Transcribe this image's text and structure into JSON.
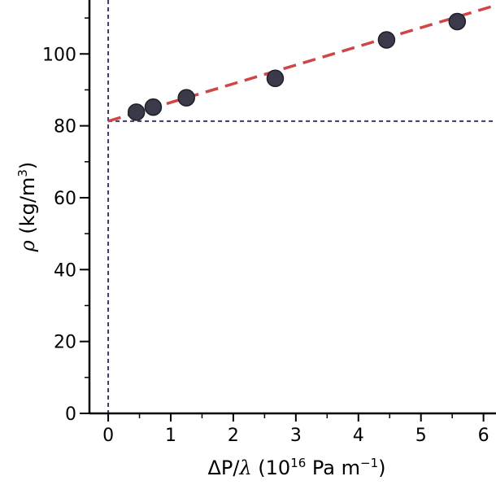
{
  "chart_data": {
    "type": "scatter",
    "x_ticks": [
      "0",
      "1",
      "2",
      "3",
      "4",
      "5",
      "6"
    ],
    "y_ticks": [
      "0",
      "20",
      "40",
      "60",
      "80",
      "100"
    ],
    "xlim": [
      -0.3,
      6.2
    ],
    "ylim": [
      0,
      115
    ],
    "xlabel": {
      "prefix": "ΔP/",
      "greek": "λ",
      "mid": " (10",
      "sup": "16",
      "mid2": " Pa m",
      "sup2": "−1",
      "suffix": ")"
    },
    "ylabel": {
      "greek": "ρ",
      "mid": " (kg/m",
      "sup": "3",
      "suffix": ")"
    },
    "series": [
      {
        "x": [
          0.45,
          0.72,
          1.25,
          2.67,
          4.45,
          5.58
        ],
        "y": [
          83.8,
          85.2,
          87.8,
          93.2,
          103.9,
          109.0
        ],
        "color": "#3a3a4a"
      }
    ],
    "fit_line": {
      "intercept": 81.3,
      "slope": 5.2,
      "x_start": 0,
      "x_end": 6.2,
      "color": "#d04545"
    },
    "reference_lines": {
      "vertical_x": 0,
      "horizontal_y": 81.3,
      "color": "#3a3a66"
    },
    "grid": false
  }
}
